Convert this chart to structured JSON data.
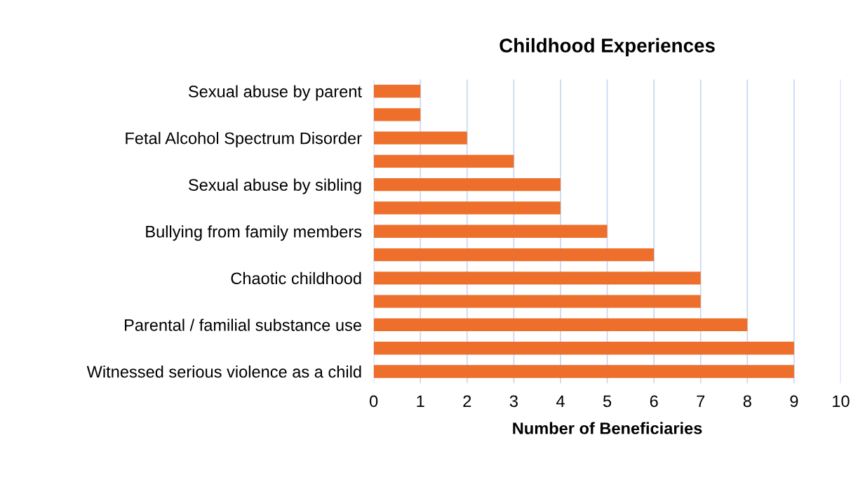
{
  "chart_data": {
    "type": "bar",
    "orientation": "horizontal",
    "title": "Childhood Experiences",
    "xlabel": "Number of Beneficiaries",
    "categories": [
      "Sexual abuse by parent",
      null,
      "Fetal Alcohol Spectrum Disorder",
      null,
      "Sexual abuse by sibling",
      null,
      "Bullying from family members",
      null,
      "Chaotic childhood",
      null,
      "Parental / familial substance use",
      null,
      "Witnessed serious violence as a child"
    ],
    "values": [
      1,
      1,
      2,
      3,
      4,
      4,
      5,
      6,
      7,
      7,
      8,
      9,
      9
    ],
    "color": "#ee6e2c",
    "xlim": [
      0,
      10
    ],
    "xticks": [
      0,
      1,
      2,
      3,
      4,
      5,
      6,
      7,
      8,
      9,
      10
    ],
    "grid": "x",
    "legend": false
  }
}
